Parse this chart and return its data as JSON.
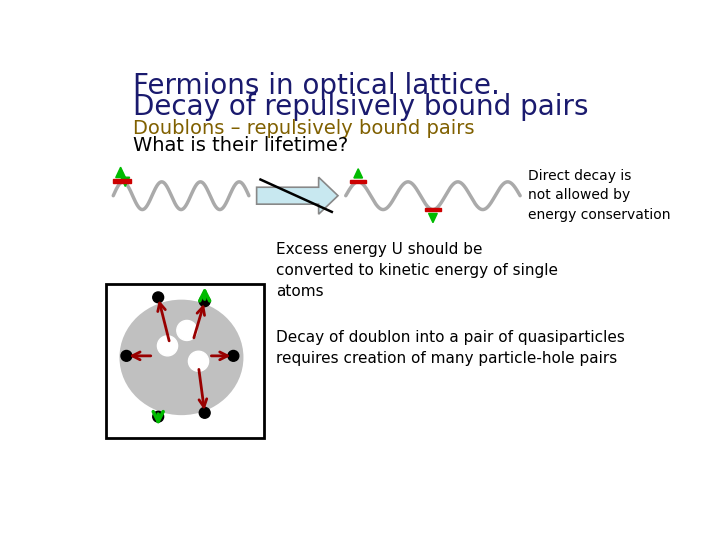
{
  "title_line1": "Fermions in optical lattice.",
  "title_line2": "Decay of repulsively bound pairs",
  "title_color": "#1a1a6e",
  "subtitle": "Doublons – repulsively bound pairs",
  "subtitle_color": "#806000",
  "subtitle2": "What is their lifetime?",
  "subtitle2_color": "#000000",
  "text_direct_decay": "Direct decay is\nnot allowed by\nenergy conservation",
  "text_excess": "Excess energy U should be\nconverted to kinetic energy of single\natoms",
  "text_decay": "Decay of doublon into a pair of quasiparticles\nrequires creation of many particle-hole pairs",
  "bg_color": "#ffffff",
  "wave_color": "#aaaaaa",
  "arrow_fill_color": "#c8e8f0",
  "arrow_outline_color": "#888888",
  "green_color": "#00bb00",
  "red_color": "#cc0000",
  "dark_red_color": "#990000",
  "black_color": "#111111",
  "gray_circle_color": "#c0c0c0",
  "title_fontsize": 20,
  "subtitle_fontsize": 14,
  "body_fontsize": 11,
  "small_fontsize": 10
}
